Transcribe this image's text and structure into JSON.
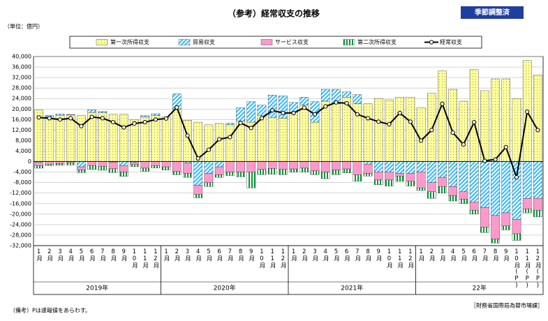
{
  "chart_data": {
    "type": "stacked-bar-line",
    "title": "（参考）経常収支の推移",
    "unit_label": "（単位：億円）",
    "badge": "季節調整済",
    "note": "（備考）Pは速報値をあらわす。",
    "source": "［財務省国際局為替市場課］",
    "categories": [
      "1月",
      "2月",
      "3月",
      "4月",
      "5月",
      "6月",
      "7月",
      "8月",
      "9月",
      "10月",
      "11月",
      "12月",
      "1月",
      "2月",
      "3月",
      "4月",
      "5月",
      "6月",
      "7月",
      "8月",
      "9月",
      "10月",
      "11月",
      "12月",
      "1月",
      "2月",
      "3月",
      "4月",
      "5月",
      "6月",
      "7月",
      "8月",
      "9月",
      "10月",
      "11月",
      "12月",
      "1月",
      "2月",
      "3月",
      "4月",
      "5月",
      "6月",
      "7月",
      "8月",
      "9月",
      "10月(P)",
      "11月(P)",
      "12月(P)"
    ],
    "x_groups": [
      "2019年",
      "2020年",
      "2021年",
      "22年"
    ],
    "series": [
      {
        "name": "第一次所得収支",
        "color": "#ffff99",
        "kind": "bar",
        "values": [
          19600,
          17000,
          17600,
          17800,
          17500,
          18700,
          18600,
          18000,
          18000,
          16000,
          17000,
          17500,
          17000,
          20000,
          15700,
          15000,
          14000,
          14500,
          14000,
          15500,
          15000,
          17500,
          16800,
          16500,
          19000,
          21500,
          15000,
          23000,
          22000,
          24500,
          22000,
          22000,
          24000,
          23500,
          24500,
          24500,
          20500,
          26000,
          34500,
          27500,
          23000,
          35000,
          27000,
          31500,
          31500,
          24000,
          38500,
          33000
        ]
      },
      {
        "name": "貿易収支",
        "color": "#33bbff",
        "kind": "bar",
        "values": [
          -300,
          600,
          500,
          100,
          -2000,
          1000,
          500,
          -200,
          -1500,
          -300,
          500,
          700,
          0,
          5800,
          -500,
          -9000,
          -4500,
          -2000,
          600,
          5000,
          7800,
          4000,
          8500,
          8500,
          3500,
          3000,
          7800,
          4500,
          5500,
          2000,
          3500,
          -1000,
          -4000,
          -4000,
          -4500,
          -4500,
          -4000,
          -8000,
          -6000,
          -9500,
          -11500,
          -15500,
          -17500,
          -20500,
          -19500,
          -22000,
          -14000,
          -14000
        ]
      },
      {
        "name": "サービス収支",
        "color": "#ff99cc",
        "kind": "bar",
        "values": [
          -1300,
          -1000,
          -700,
          -400,
          -1200,
          -1500,
          -1800,
          -2500,
          -2500,
          -800,
          -2500,
          -1500,
          -2000,
          -3800,
          -4000,
          -3500,
          -3500,
          -3000,
          -4000,
          -4000,
          -4000,
          -3000,
          -2600,
          -3000,
          -2800,
          -2500,
          -3500,
          -4000,
          -3200,
          -2800,
          -5000,
          -3500,
          -3000,
          -3000,
          -1000,
          -3000,
          -6000,
          -3500,
          -3500,
          -3500,
          -2800,
          -3000,
          -7500,
          -9000,
          -5000,
          -5500,
          -4000,
          -4500
        ]
      },
      {
        "name": "第二次所得収支",
        "color": "#009933",
        "kind": "bar",
        "values": [
          -900,
          -500,
          -700,
          -900,
          -1000,
          -1500,
          -1500,
          -1500,
          -1600,
          -800,
          -1200,
          -900,
          -1200,
          -1200,
          -1500,
          -1300,
          -1500,
          -1000,
          -1300,
          -1800,
          -6000,
          -2000,
          -2200,
          -2000,
          -1200,
          -1500,
          -1500,
          -2500,
          -1800,
          -1500,
          -2500,
          -1000,
          -1800,
          -2300,
          -2000,
          -1800,
          -1000,
          -2500,
          -2500,
          -2000,
          -1700,
          -1500,
          -2000,
          -1500,
          -1500,
          -2500,
          -1500,
          -2500
        ]
      },
      {
        "name": "経常収支",
        "color": "#000000",
        "kind": "line",
        "values": [
          16800,
          16500,
          16000,
          16500,
          13500,
          17000,
          16500,
          15000,
          13000,
          14500,
          15000,
          16000,
          16400,
          20600,
          9900,
          1200,
          4500,
          8500,
          9300,
          14700,
          12800,
          16500,
          19500,
          18500,
          18500,
          20500,
          18000,
          21000,
          22500,
          22200,
          18000,
          16500,
          15200,
          14200,
          18500,
          15200,
          8000,
          12000,
          22000,
          11000,
          6500,
          15000,
          300,
          800,
          5500,
          -6000,
          19000,
          12000
        ]
      }
    ],
    "ylim": [
      -32000,
      40000
    ],
    "yticks": [
      {
        "value": 40000,
        "label": "40,000"
      },
      {
        "value": 36000,
        "label": "36,000"
      },
      {
        "value": 32000,
        "label": "32,000"
      },
      {
        "value": 28000,
        "label": "28,000"
      },
      {
        "value": 24000,
        "label": "24,000"
      },
      {
        "value": 20000,
        "label": "20,000"
      },
      {
        "value": 16000,
        "label": "16,000"
      },
      {
        "value": 12000,
        "label": "12,000"
      },
      {
        "value": 8000,
        "label": "8,000"
      },
      {
        "value": 4000,
        "label": "4,000"
      },
      0,
      {
        "value": -4000,
        "label": "-4,000"
      },
      {
        "value": -8000,
        "label": "-8,000"
      },
      {
        "value": -12000,
        "label": "-12,000"
      },
      {
        "value": -16000,
        "label": "-16,000"
      },
      {
        "value": -20000,
        "label": "-20,000"
      },
      {
        "value": -24000,
        "label": "-24,000"
      },
      {
        "value": -28000,
        "label": "-28,000"
      },
      {
        "value": -32000,
        "label": "-32,000"
      }
    ],
    "grid": true
  }
}
